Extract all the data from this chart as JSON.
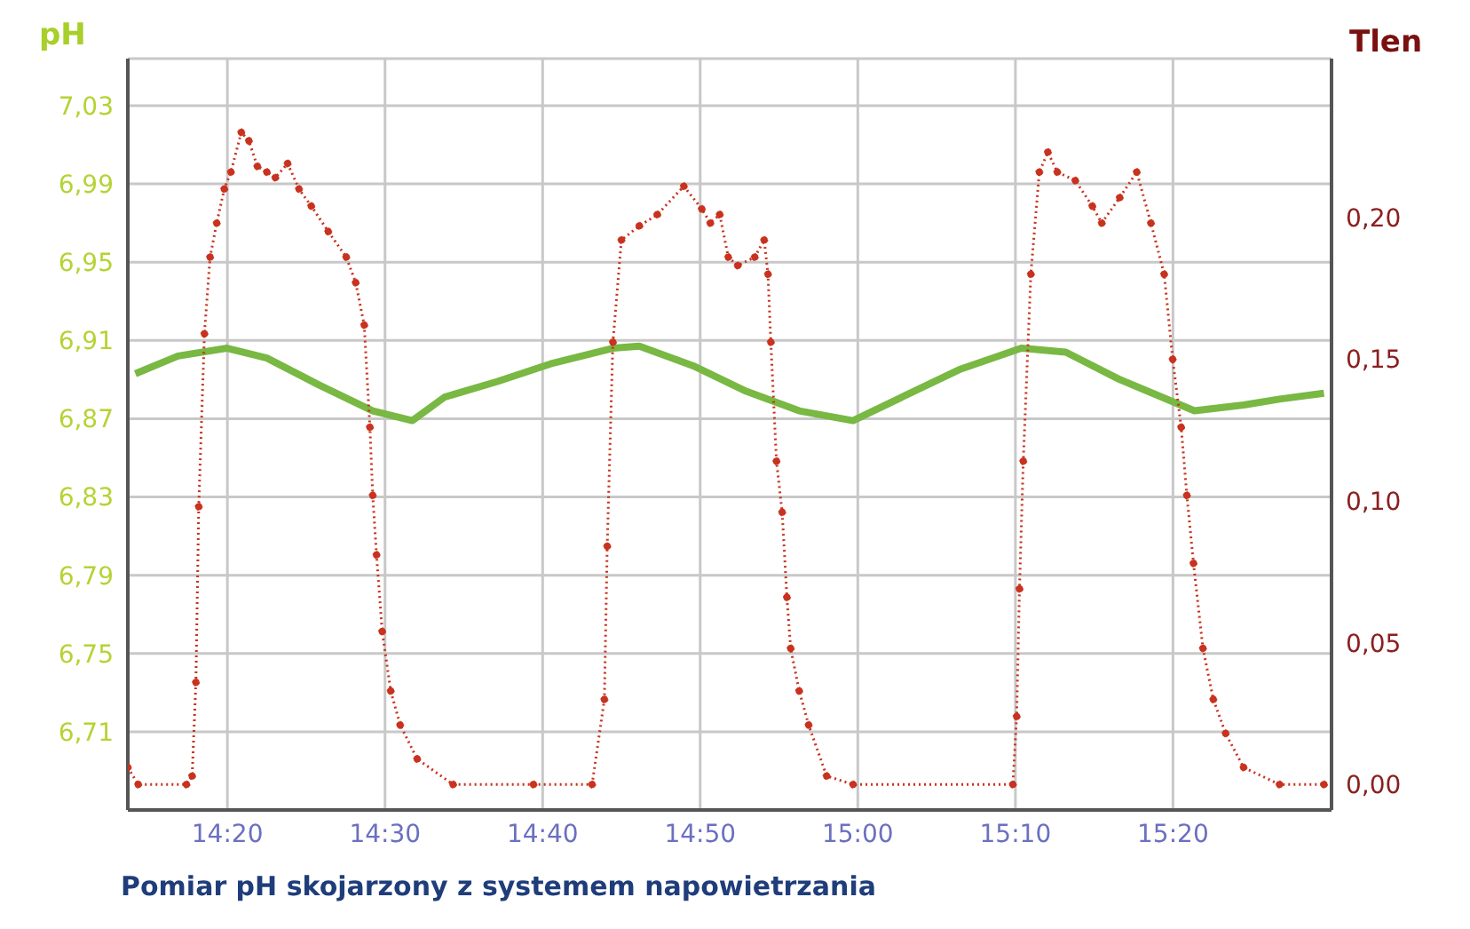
{
  "chart_data": {
    "type": "line",
    "title": "Pomiar pH skojarzony z systemem napowietrzania",
    "ylabel": "pH",
    "y2label": "Tlen",
    "xlim": [
      14.228,
      15.501
    ],
    "xticks": [
      {
        "value": 14.3333,
        "label": "14:20"
      },
      {
        "value": 14.5,
        "label": "14:30"
      },
      {
        "value": 14.6667,
        "label": "14:40"
      },
      {
        "value": 14.8333,
        "label": "14:50"
      },
      {
        "value": 15,
        "label": "15:00"
      },
      {
        "value": 15.1667,
        "label": "15:10"
      },
      {
        "value": 15.3333,
        "label": "15:20"
      }
    ],
    "ylim": [
      6.67,
      7.054
    ],
    "yticks": [
      {
        "value": 6.71,
        "label": "6,71"
      },
      {
        "value": 6.75,
        "label": "6,75"
      },
      {
        "value": 6.79,
        "label": "6,79"
      },
      {
        "value": 6.83,
        "label": "6,83"
      },
      {
        "value": 6.87,
        "label": "6,87"
      },
      {
        "value": 6.91,
        "label": "6,91"
      },
      {
        "value": 6.95,
        "label": "6,95"
      },
      {
        "value": 6.99,
        "label": "6,99"
      },
      {
        "value": 7.03,
        "label": "7,03"
      }
    ],
    "y2lim": [
      -0.009,
      0.256
    ],
    "y2ticks": [
      {
        "value": 0,
        "label": "0,00"
      },
      {
        "value": 0.05,
        "label": "0,05"
      },
      {
        "value": 0.1,
        "label": "0,10"
      },
      {
        "value": 0.15,
        "label": "0,15"
      },
      {
        "value": 0.2,
        "label": "0,20"
      }
    ],
    "grid": true,
    "series": [
      {
        "color": "#78b843",
        "line_style": "solid",
        "marker": "none",
        "x": [
          14.236,
          14.281,
          14.333,
          14.375,
          14.431,
          14.487,
          14.529,
          14.563,
          14.619,
          14.675,
          14.741,
          14.769,
          14.826,
          14.882,
          14.938,
          14.995,
          15.051,
          15.107,
          15.173,
          15.22,
          15.277,
          15.356,
          15.408,
          15.446,
          15.493
        ],
        "values": [
          6.893,
          6.902,
          6.906,
          6.901,
          6.887,
          6.874,
          6.869,
          6.881,
          6.889,
          6.898,
          6.906,
          6.907,
          6.897,
          6.884,
          6.874,
          6.869,
          6.882,
          6.895,
          6.906,
          6.904,
          6.89,
          6.874,
          6.877,
          6.88,
          6.883
        ]
      },
      {
        "axis": "y2",
        "color": "#c8321e",
        "line_style": "dotted",
        "marker": "circle",
        "x": [
          14.228,
          14.239,
          14.29,
          14.296,
          14.3,
          14.303,
          14.309,
          14.315,
          14.322,
          14.33,
          14.337,
          14.348,
          14.356,
          14.365,
          14.375,
          14.384,
          14.397,
          14.409,
          14.422,
          14.44,
          14.459,
          14.469,
          14.478,
          14.484,
          14.487,
          14.491,
          14.497,
          14.506,
          14.516,
          14.534,
          14.572,
          14.657,
          14.719,
          14.732,
          14.735,
          14.741,
          14.75,
          14.769,
          14.788,
          14.816,
          14.835,
          14.844,
          14.854,
          14.863,
          14.873,
          14.891,
          14.901,
          14.905,
          14.908,
          14.914,
          14.92,
          14.925,
          14.929,
          14.938,
          14.948,
          14.967,
          14.995,
          15.164,
          15.168,
          15.171,
          15.175,
          15.183,
          15.192,
          15.201,
          15.211,
          15.23,
          15.248,
          15.258,
          15.277,
          15.295,
          15.31,
          15.324,
          15.333,
          15.342,
          15.348,
          15.355,
          15.365,
          15.376,
          15.389,
          15.408,
          15.446,
          15.493
        ],
        "values": [
          0.006,
          0,
          0,
          0.003,
          0.036,
          0.098,
          0.159,
          0.186,
          0.198,
          0.21,
          0.216,
          0.23,
          0.227,
          0.218,
          0.216,
          0.214,
          0.219,
          0.21,
          0.204,
          0.195,
          0.186,
          0.177,
          0.162,
          0.126,
          0.102,
          0.081,
          0.054,
          0.033,
          0.021,
          0.009,
          0,
          0,
          0,
          0.03,
          0.084,
          0.156,
          0.192,
          0.197,
          0.201,
          0.211,
          0.203,
          0.198,
          0.201,
          0.186,
          0.183,
          0.186,
          0.192,
          0.18,
          0.156,
          0.114,
          0.096,
          0.066,
          0.048,
          0.033,
          0.021,
          0.003,
          0,
          0,
          0.024,
          0.069,
          0.114,
          0.18,
          0.216,
          0.223,
          0.216,
          0.213,
          0.204,
          0.198,
          0.207,
          0.216,
          0.198,
          0.18,
          0.15,
          0.126,
          0.102,
          0.078,
          0.048,
          0.03,
          0.018,
          0.006,
          0,
          0
        ]
      }
    ]
  }
}
